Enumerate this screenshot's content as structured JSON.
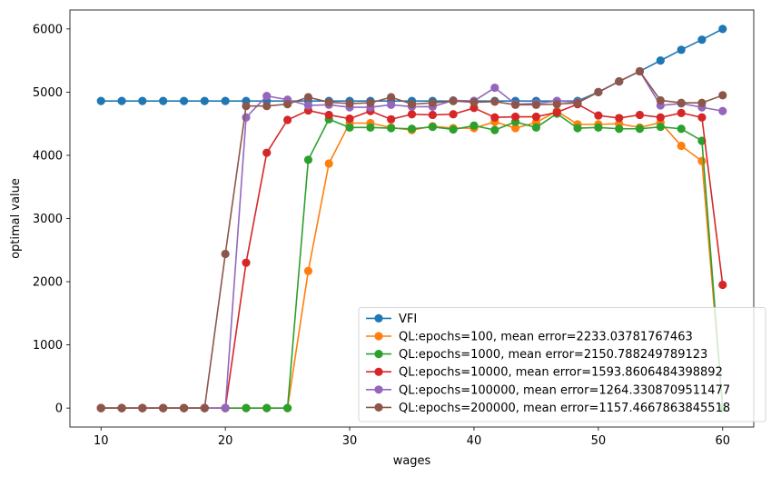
{
  "chart_data": {
    "type": "line",
    "title": "",
    "xlabel": "wages",
    "ylabel": "optimal value",
    "xlim": [
      7.5,
      62.5
    ],
    "ylim": [
      -300,
      6300
    ],
    "xticks": [
      10,
      20,
      30,
      40,
      50,
      60
    ],
    "yticks": [
      0,
      1000,
      2000,
      3000,
      4000,
      5000,
      6000
    ],
    "grid": false,
    "legend_position": "lower-right",
    "x": [
      10.0,
      11.67,
      13.33,
      15.0,
      16.67,
      18.33,
      20.0,
      21.67,
      23.33,
      25.0,
      26.67,
      28.33,
      30.0,
      31.67,
      33.33,
      35.0,
      36.67,
      38.33,
      40.0,
      41.67,
      43.33,
      45.0,
      46.67,
      48.33,
      50.0,
      51.67,
      53.33,
      55.0,
      56.67,
      58.33,
      60.0
    ],
    "series": [
      {
        "name": "VFI",
        "color": "#1f77b4",
        "values": [
          4860,
          4860,
          4860,
          4860,
          4860,
          4860,
          4860,
          4860,
          4860,
          4860,
          4860,
          4860,
          4860,
          4860,
          4860,
          4860,
          4860,
          4860,
          4860,
          4860,
          4860,
          4860,
          4860,
          4860,
          5000,
          5170,
          5330,
          5500,
          5670,
          5830,
          6000
        ]
      },
      {
        "name": "QL:epochs=100, mean error=2233.03781767463",
        "color": "#ff7f0e",
        "values": [
          0,
          0,
          0,
          0,
          0,
          0,
          0,
          0,
          0,
          0,
          2170,
          3870,
          4510,
          4510,
          4440,
          4400,
          4460,
          4430,
          4430,
          4530,
          4430,
          4520,
          4700,
          4490,
          4490,
          4500,
          4440,
          4520,
          4150,
          3910,
          0
        ]
      },
      {
        "name": "QL:epochs=1000, mean error=2150.788249789123",
        "color": "#2ca02c",
        "values": [
          0,
          0,
          0,
          0,
          0,
          0,
          0,
          0,
          0,
          0,
          3930,
          4570,
          4440,
          4440,
          4430,
          4420,
          4450,
          4410,
          4470,
          4400,
          4530,
          4440,
          4660,
          4430,
          4440,
          4420,
          4420,
          4450,
          4420,
          4230,
          0
        ]
      },
      {
        "name": "QL:epochs=10000, mean error=1593.8606484398892",
        "color": "#d62728",
        "values": [
          0,
          0,
          0,
          0,
          0,
          0,
          0,
          2300,
          4040,
          4560,
          4710,
          4640,
          4580,
          4700,
          4570,
          4650,
          4640,
          4650,
          4750,
          4600,
          4610,
          4610,
          4680,
          4810,
          4630,
          4590,
          4640,
          4600,
          4670,
          4600,
          1950
        ]
      },
      {
        "name": "QL:epochs=100000, mean error=1264.3308709511477",
        "color": "#9467bd",
        "values": [
          0,
          0,
          0,
          0,
          0,
          0,
          0,
          4600,
          4940,
          4880,
          4790,
          4800,
          4760,
          4760,
          4800,
          4770,
          4770,
          4870,
          4860,
          5070,
          4810,
          4820,
          4860,
          4840,
          5000,
          5170,
          5330,
          4790,
          4820,
          4760,
          4700
        ]
      },
      {
        "name": "QL:epochs=200000, mean error=1157.4667863845518",
        "color": "#8c564b",
        "values": [
          0,
          0,
          0,
          0,
          0,
          0,
          2440,
          4780,
          4780,
          4810,
          4920,
          4840,
          4820,
          4830,
          4920,
          4810,
          4830,
          4860,
          4840,
          4850,
          4800,
          4800,
          4810,
          4830,
          5000,
          5170,
          5330,
          4870,
          4830,
          4830,
          4950
        ]
      }
    ]
  }
}
